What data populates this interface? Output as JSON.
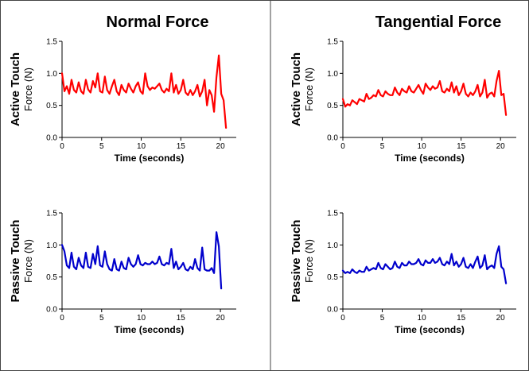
{
  "columns": [
    "Normal Force",
    "Tangential Force"
  ],
  "chart_data": [
    {
      "type": "line",
      "column": "Normal Force",
      "title": "Active Touch",
      "ylabel": "Force (N)",
      "xlabel": "Time (seconds)",
      "xlim": [
        0,
        22
      ],
      "ylim": [
        0,
        1.5
      ],
      "xticks": [
        "0",
        "5",
        "10",
        "15",
        "20"
      ],
      "yticks": [
        "0.0",
        "0.5",
        "1.0",
        "1.5"
      ],
      "color": "#ff0000",
      "series": [
        {
          "x": [
            0,
            0.3,
            0.6,
            0.9,
            1.2,
            1.5,
            1.8,
            2.1,
            2.4,
            2.7,
            3.0,
            3.3,
            3.6,
            3.9,
            4.2,
            4.5,
            4.8,
            5.1,
            5.4,
            5.7,
            6.0,
            6.3,
            6.6,
            6.9,
            7.2,
            7.5,
            7.8,
            8.1,
            8.4,
            8.7,
            9.0,
            9.3,
            9.6,
            9.9,
            10.2,
            10.5,
            10.8,
            11.1,
            11.4,
            11.7,
            12.0,
            12.3,
            12.6,
            12.9,
            13.2,
            13.5,
            13.8,
            14.1,
            14.4,
            14.7,
            15.0,
            15.3,
            15.6,
            15.9,
            16.2,
            16.5,
            16.8,
            17.1,
            17.4,
            17.7,
            18.0,
            18.3,
            18.6,
            18.9,
            19.2,
            19.5,
            19.8,
            20.1,
            20.4,
            20.7
          ],
          "y": [
            1.0,
            0.72,
            0.8,
            0.68,
            0.9,
            0.74,
            0.7,
            0.86,
            0.72,
            0.68,
            0.9,
            0.75,
            0.7,
            0.88,
            0.78,
            1.0,
            0.72,
            0.7,
            0.95,
            0.74,
            0.68,
            0.8,
            0.9,
            0.72,
            0.66,
            0.82,
            0.74,
            0.7,
            0.84,
            0.76,
            0.7,
            0.8,
            0.86,
            0.72,
            0.68,
            1.0,
            0.8,
            0.74,
            0.78,
            0.76,
            0.8,
            0.84,
            0.74,
            0.7,
            0.76,
            0.72,
            1.0,
            0.7,
            0.82,
            0.68,
            0.74,
            0.9,
            0.7,
            0.66,
            0.74,
            0.66,
            0.72,
            0.82,
            0.64,
            0.72,
            0.9,
            0.5,
            0.74,
            0.66,
            0.4,
            0.94,
            1.28,
            0.68,
            0.58,
            0.15
          ]
        }
      ]
    },
    {
      "type": "line",
      "column": "Tangential Force",
      "title": "Active Touch",
      "ylabel": "Force (N)",
      "xlabel": "Time (seconds)",
      "xlim": [
        0,
        22
      ],
      "ylim": [
        0,
        1.5
      ],
      "xticks": [
        "0",
        "5",
        "10",
        "15",
        "20"
      ],
      "yticks": [
        "0.0",
        "0.5",
        "1.0",
        "1.5"
      ],
      "color": "#ff0000",
      "series": [
        {
          "x": [
            0,
            0.3,
            0.6,
            0.9,
            1.2,
            1.5,
            1.8,
            2.1,
            2.4,
            2.7,
            3.0,
            3.3,
            3.6,
            3.9,
            4.2,
            4.5,
            4.8,
            5.1,
            5.4,
            5.7,
            6.0,
            6.3,
            6.6,
            6.9,
            7.2,
            7.5,
            7.8,
            8.1,
            8.4,
            8.7,
            9.0,
            9.3,
            9.6,
            9.9,
            10.2,
            10.5,
            10.8,
            11.1,
            11.4,
            11.7,
            12.0,
            12.3,
            12.6,
            12.9,
            13.2,
            13.5,
            13.8,
            14.1,
            14.4,
            14.7,
            15.0,
            15.3,
            15.6,
            15.9,
            16.2,
            16.5,
            16.8,
            17.1,
            17.4,
            17.7,
            18.0,
            18.3,
            18.6,
            18.9,
            19.2,
            19.5,
            19.8,
            20.1,
            20.4,
            20.7
          ],
          "y": [
            0.6,
            0.48,
            0.52,
            0.5,
            0.58,
            0.55,
            0.52,
            0.6,
            0.58,
            0.56,
            0.68,
            0.6,
            0.62,
            0.66,
            0.64,
            0.74,
            0.66,
            0.64,
            0.72,
            0.68,
            0.66,
            0.66,
            0.78,
            0.7,
            0.66,
            0.76,
            0.72,
            0.7,
            0.8,
            0.72,
            0.7,
            0.76,
            0.82,
            0.74,
            0.68,
            0.84,
            0.78,
            0.74,
            0.8,
            0.76,
            0.78,
            0.88,
            0.72,
            0.7,
            0.76,
            0.72,
            0.86,
            0.7,
            0.8,
            0.66,
            0.72,
            0.84,
            0.68,
            0.64,
            0.7,
            0.66,
            0.72,
            0.82,
            0.64,
            0.7,
            0.9,
            0.62,
            0.68,
            0.7,
            0.64,
            0.88,
            1.04,
            0.66,
            0.68,
            0.35
          ]
        }
      ]
    },
    {
      "type": "line",
      "column": "Normal Force",
      "title": "Passive Touch",
      "ylabel": "Force (N)",
      "xlabel": "Time (seconds)",
      "xlim": [
        0,
        22
      ],
      "ylim": [
        0,
        1.5
      ],
      "xticks": [
        "0",
        "5",
        "10",
        "15",
        "20"
      ],
      "yticks": [
        "0.0",
        "0.5",
        "1.0",
        "1.5"
      ],
      "color": "#0000cc",
      "series": [
        {
          "x": [
            0,
            0.3,
            0.6,
            0.9,
            1.2,
            1.5,
            1.8,
            2.1,
            2.4,
            2.7,
            3.0,
            3.3,
            3.6,
            3.9,
            4.2,
            4.5,
            4.8,
            5.1,
            5.4,
            5.7,
            6.0,
            6.3,
            6.6,
            6.9,
            7.2,
            7.5,
            7.8,
            8.1,
            8.4,
            8.7,
            9.0,
            9.3,
            9.6,
            9.9,
            10.2,
            10.5,
            10.8,
            11.1,
            11.4,
            11.7,
            12.0,
            12.3,
            12.6,
            12.9,
            13.2,
            13.5,
            13.8,
            14.1,
            14.4,
            14.7,
            15.0,
            15.3,
            15.6,
            15.9,
            16.2,
            16.5,
            16.8,
            17.1,
            17.4,
            17.7,
            18.0,
            18.3,
            18.6,
            18.9,
            19.2,
            19.5,
            19.8,
            20.1
          ],
          "y": [
            1.0,
            0.9,
            0.68,
            0.64,
            0.88,
            0.66,
            0.62,
            0.8,
            0.68,
            0.64,
            0.88,
            0.66,
            0.64,
            0.86,
            0.7,
            0.98,
            0.68,
            0.66,
            0.9,
            0.7,
            0.62,
            0.6,
            0.78,
            0.62,
            0.6,
            0.74,
            0.64,
            0.62,
            0.8,
            0.7,
            0.66,
            0.7,
            0.84,
            0.7,
            0.68,
            0.72,
            0.7,
            0.7,
            0.74,
            0.7,
            0.72,
            0.82,
            0.7,
            0.68,
            0.72,
            0.7,
            0.94,
            0.64,
            0.74,
            0.62,
            0.66,
            0.72,
            0.62,
            0.6,
            0.66,
            0.62,
            0.78,
            0.64,
            0.6,
            0.96,
            0.62,
            0.6,
            0.6,
            0.64,
            0.56,
            1.2,
            0.98,
            0.32
          ]
        }
      ]
    },
    {
      "type": "line",
      "column": "Tangential Force",
      "title": "Passive Touch",
      "ylabel": "Force (N)",
      "xlabel": "Time (seconds)",
      "xlim": [
        0,
        22
      ],
      "ylim": [
        0,
        1.5
      ],
      "xticks": [
        "0",
        "5",
        "10",
        "15",
        "20"
      ],
      "yticks": [
        "0.0",
        "0.5",
        "1.0",
        "1.5"
      ],
      "color": "#0000cc",
      "series": [
        {
          "x": [
            0,
            0.3,
            0.6,
            0.9,
            1.2,
            1.5,
            1.8,
            2.1,
            2.4,
            2.7,
            3.0,
            3.3,
            3.6,
            3.9,
            4.2,
            4.5,
            4.8,
            5.1,
            5.4,
            5.7,
            6.0,
            6.3,
            6.6,
            6.9,
            7.2,
            7.5,
            7.8,
            8.1,
            8.4,
            8.7,
            9.0,
            9.3,
            9.6,
            9.9,
            10.2,
            10.5,
            10.8,
            11.1,
            11.4,
            11.7,
            12.0,
            12.3,
            12.6,
            12.9,
            13.2,
            13.5,
            13.8,
            14.1,
            14.4,
            14.7,
            15.0,
            15.3,
            15.6,
            15.9,
            16.2,
            16.5,
            16.8,
            17.1,
            17.4,
            17.7,
            18.0,
            18.3,
            18.6,
            18.9,
            19.2,
            19.5,
            19.8,
            20.1,
            20.4,
            20.7
          ],
          "y": [
            0.6,
            0.56,
            0.58,
            0.56,
            0.62,
            0.58,
            0.56,
            0.6,
            0.58,
            0.58,
            0.66,
            0.6,
            0.62,
            0.64,
            0.62,
            0.72,
            0.64,
            0.62,
            0.7,
            0.66,
            0.62,
            0.64,
            0.74,
            0.66,
            0.64,
            0.72,
            0.68,
            0.68,
            0.74,
            0.7,
            0.7,
            0.72,
            0.78,
            0.7,
            0.68,
            0.76,
            0.72,
            0.72,
            0.78,
            0.72,
            0.74,
            0.8,
            0.7,
            0.68,
            0.74,
            0.7,
            0.86,
            0.68,
            0.74,
            0.66,
            0.7,
            0.8,
            0.66,
            0.64,
            0.7,
            0.64,
            0.74,
            0.82,
            0.64,
            0.68,
            0.84,
            0.62,
            0.66,
            0.68,
            0.64,
            0.86,
            0.98,
            0.66,
            0.62,
            0.4
          ]
        }
      ]
    }
  ]
}
